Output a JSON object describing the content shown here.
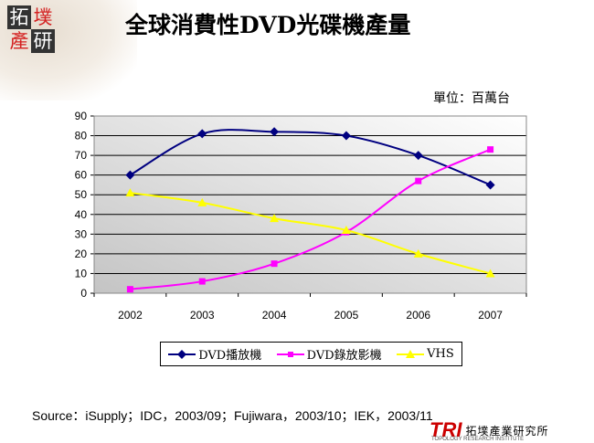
{
  "header": {
    "title": "全球消費性DVD光碟機產量",
    "logo_text": "拓墣產研",
    "unit": "單位：百萬台"
  },
  "chart_data": {
    "type": "line",
    "title": "全球消費性DVD光碟機產量",
    "ylabel": "單位：百萬台",
    "categories": [
      "2002",
      "2003",
      "2004",
      "2005",
      "2006",
      "2007"
    ],
    "ylim": [
      0,
      90
    ],
    "yticks": [
      "0",
      "10",
      "20",
      "30",
      "40",
      "50",
      "60",
      "70",
      "80",
      "90"
    ],
    "grid": true,
    "legend_position": "bottom",
    "series": [
      {
        "name": "DVD播放機",
        "values": [
          60,
          81,
          82,
          80,
          70,
          55
        ],
        "color": "#000080",
        "marker": "diamond"
      },
      {
        "name": "DVD錄放影機",
        "values": [
          2,
          6,
          15,
          31,
          57,
          73
        ],
        "color": "#ff00ff",
        "marker": "square"
      },
      {
        "name": "VHS",
        "values": [
          51,
          46,
          38,
          32,
          20,
          10
        ],
        "color": "#ffff00",
        "marker": "triangle"
      }
    ]
  },
  "footer": {
    "source": "Source：iSupply；IDC，2003/09；Fujiwara，2003/10；IEK，2003/11",
    "brand": "TRI",
    "brand_cn": "拓墣產業研究所",
    "brand_en": "TOPOLOGY RESEARCH INSTITUTE"
  }
}
